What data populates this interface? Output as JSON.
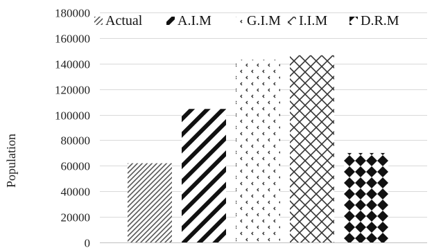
{
  "chart_data": {
    "type": "bar",
    "title": "",
    "xlabel": "",
    "ylabel": "Population",
    "ylim": [
      0,
      180000
    ],
    "yticks": [
      "0",
      "20000",
      "40000",
      "60000",
      "80000",
      "100000",
      "120000",
      "140000",
      "160000",
      "180000"
    ],
    "grid": true,
    "legend_position": "top",
    "categories": [
      ""
    ],
    "series": [
      {
        "name": "Actual",
        "values": [
          62000
        ],
        "pattern": "fine-diagonal-stripes"
      },
      {
        "name": "A.I.M",
        "values": [
          104500
        ],
        "pattern": "wide-diagonal-stripes"
      },
      {
        "name": "G.I.M",
        "values": [
          143000
        ],
        "pattern": "scattered-chevrons"
      },
      {
        "name": "I.I.M",
        "values": [
          146500
        ],
        "pattern": "diagonal-crosshatch"
      },
      {
        "name": "D.R.M",
        "values": [
          70000
        ],
        "pattern": "diamond-checker"
      }
    ]
  }
}
